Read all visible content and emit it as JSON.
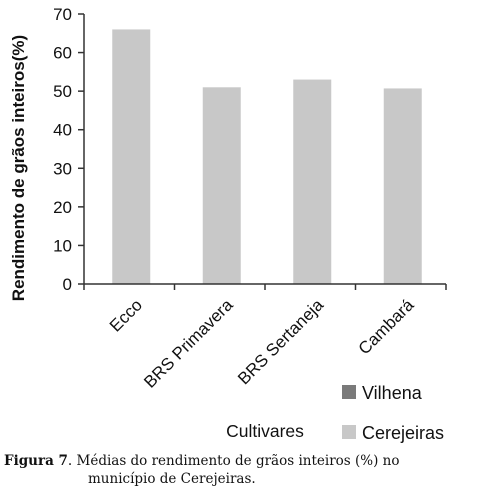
{
  "chart_data": {
    "type": "bar",
    "categories": [
      "Ecco",
      "BRS Primavera",
      "BRS Sertaneja",
      "Cambará"
    ],
    "series": [
      {
        "name": "Vilhena",
        "values": [
          null,
          null,
          null,
          null
        ],
        "color": "#7a7a7a"
      },
      {
        "name": "Cerejeiras",
        "values": [
          66,
          51,
          53,
          50.7
        ],
        "color": "#c8c8c8"
      }
    ],
    "title": "",
    "xlabel": "Cultivares",
    "ylabel": "Rendimento de grãos inteiros(%)",
    "ylim": [
      0,
      70
    ],
    "yticks": [
      "0",
      "10",
      "20",
      "30",
      "40",
      "50",
      "60",
      "70"
    ],
    "grid": false,
    "legend_position": "bottom-right"
  },
  "caption": {
    "label": "Figura 7",
    "text_line1": ". Médias do rendimento de grãos inteiros (%) no",
    "text_line2": "município de Cerejeiras."
  }
}
